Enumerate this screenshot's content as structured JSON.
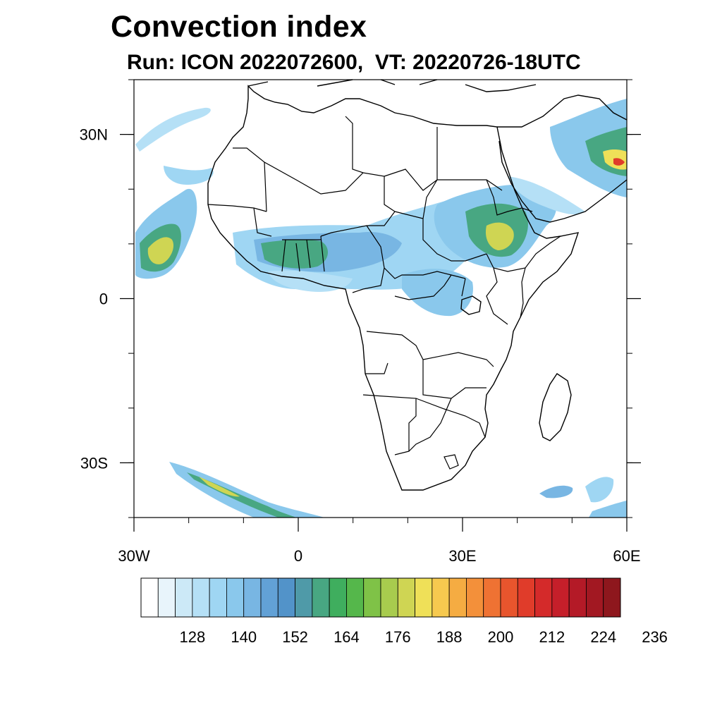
{
  "title": "Convection index",
  "subtitle": "Run: ICON 2022072600,  VT: 20220726-18UTC",
  "map": {
    "projection": "cylindrical equidistant",
    "lon_range": [
      -30,
      60
    ],
    "lat_range": [
      -40,
      40
    ],
    "lat_ticks": [
      {
        "value": 30,
        "label": "30N"
      },
      {
        "value": 0,
        "label": "0"
      },
      {
        "value": -30,
        "label": "30S"
      }
    ],
    "lon_ticks": [
      {
        "value": -30,
        "label": "30W"
      },
      {
        "value": 0,
        "label": "0"
      },
      {
        "value": 30,
        "label": "30E"
      },
      {
        "value": 60,
        "label": "60E"
      }
    ],
    "minor_tick_step_deg": 10
  },
  "colorbar": {
    "colors": [
      "#ffffff",
      "#e8f4fb",
      "#cce9f7",
      "#b5e0f6",
      "#9fd6f3",
      "#8ac8ec",
      "#78b6e3",
      "#62a1d6",
      "#5293c9",
      "#4f9aa8",
      "#48a782",
      "#3fae5e",
      "#55b74b",
      "#7fc247",
      "#a8cc4e",
      "#cfd553",
      "#efe058",
      "#f6c94f",
      "#f5ac42",
      "#f3903a",
      "#ef7233",
      "#e8552d",
      "#e03c2a",
      "#d42a2a",
      "#c51f2a",
      "#b41a27",
      "#a21822",
      "#8e171d"
    ],
    "tick_labels": [
      "128",
      "140",
      "152",
      "164",
      "176",
      "188",
      "200",
      "212",
      "224",
      "236"
    ]
  }
}
